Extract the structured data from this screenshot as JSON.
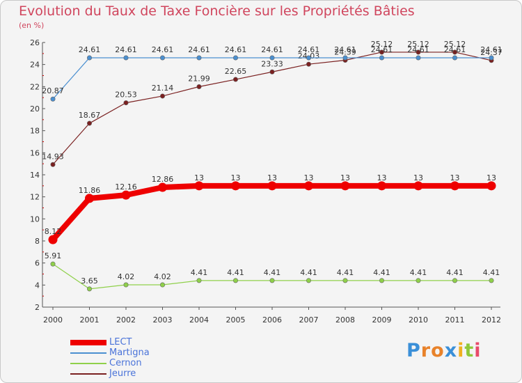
{
  "title": "Evolution du Taux de Taxe Foncière sur les Propriétés Bâties",
  "unit": "(en %)",
  "watermark": "Proxiti",
  "chart_data": {
    "type": "line",
    "title": "Evolution du Taux de Taxe Foncière sur les Propriétés Bâties",
    "ylabel": "(en %)",
    "xlabel": "",
    "x": [
      "2000",
      "2001",
      "2002",
      "2003",
      "2004",
      "2005",
      "2006",
      "2007",
      "2008",
      "2009",
      "2010",
      "2011",
      "2012"
    ],
    "ylim": [
      2,
      26
    ],
    "yticks": [
      "2",
      "4",
      "6",
      "8",
      "10",
      "12",
      "14",
      "16",
      "18",
      "20",
      "22",
      "24",
      "26"
    ],
    "grid": false,
    "legend_position": "bottom-left",
    "series": [
      {
        "name": "LECT",
        "color": "#ee0000",
        "values": [
          8.12,
          11.86,
          12.16,
          12.86,
          13,
          13,
          13,
          13,
          13,
          13,
          13,
          13,
          13
        ],
        "labels": [
          "8.12",
          "11.86",
          "12.16",
          "12.86",
          "13",
          "13",
          "13",
          "13",
          "13",
          "13",
          "13",
          "13",
          "13"
        ]
      },
      {
        "name": "Martigna",
        "color": "#4a8fd0",
        "values": [
          20.87,
          24.61,
          24.61,
          24.61,
          24.61,
          24.61,
          24.61,
          24.61,
          24.61,
          24.61,
          24.61,
          24.61,
          24.61
        ],
        "labels": [
          "20.87",
          "24.61",
          "24.61",
          "24.61",
          "24.61",
          "24.61",
          "24.61",
          "24.61",
          "24.61",
          "24.61",
          "24.61",
          "24.61",
          "24.61"
        ]
      },
      {
        "name": "Cernon",
        "color": "#8fd04a",
        "values": [
          5.91,
          3.65,
          4.02,
          4.02,
          4.41,
          4.41,
          4.41,
          4.41,
          4.41,
          4.41,
          4.41,
          4.41,
          4.41
        ],
        "labels": [
          "5.91",
          "3.65",
          "4.02",
          "4.02",
          "4.41",
          "4.41",
          "4.41",
          "4.41",
          "4.41",
          "4.41",
          "4.41",
          "4.41",
          "4.41"
        ]
      },
      {
        "name": "Jeurre",
        "color": "#7a2020",
        "values": [
          14.93,
          18.67,
          20.53,
          21.14,
          21.99,
          22.65,
          23.33,
          24.03,
          24.39,
          25.12,
          25.12,
          25.12,
          24.37
        ],
        "labels": [
          "14.93",
          "18.67",
          "20.53",
          "21.14",
          "21.99",
          "22.65",
          "23.33",
          "24.03",
          "24.39",
          "25.12",
          "25.12",
          "25.12",
          "24.37"
        ]
      }
    ]
  }
}
